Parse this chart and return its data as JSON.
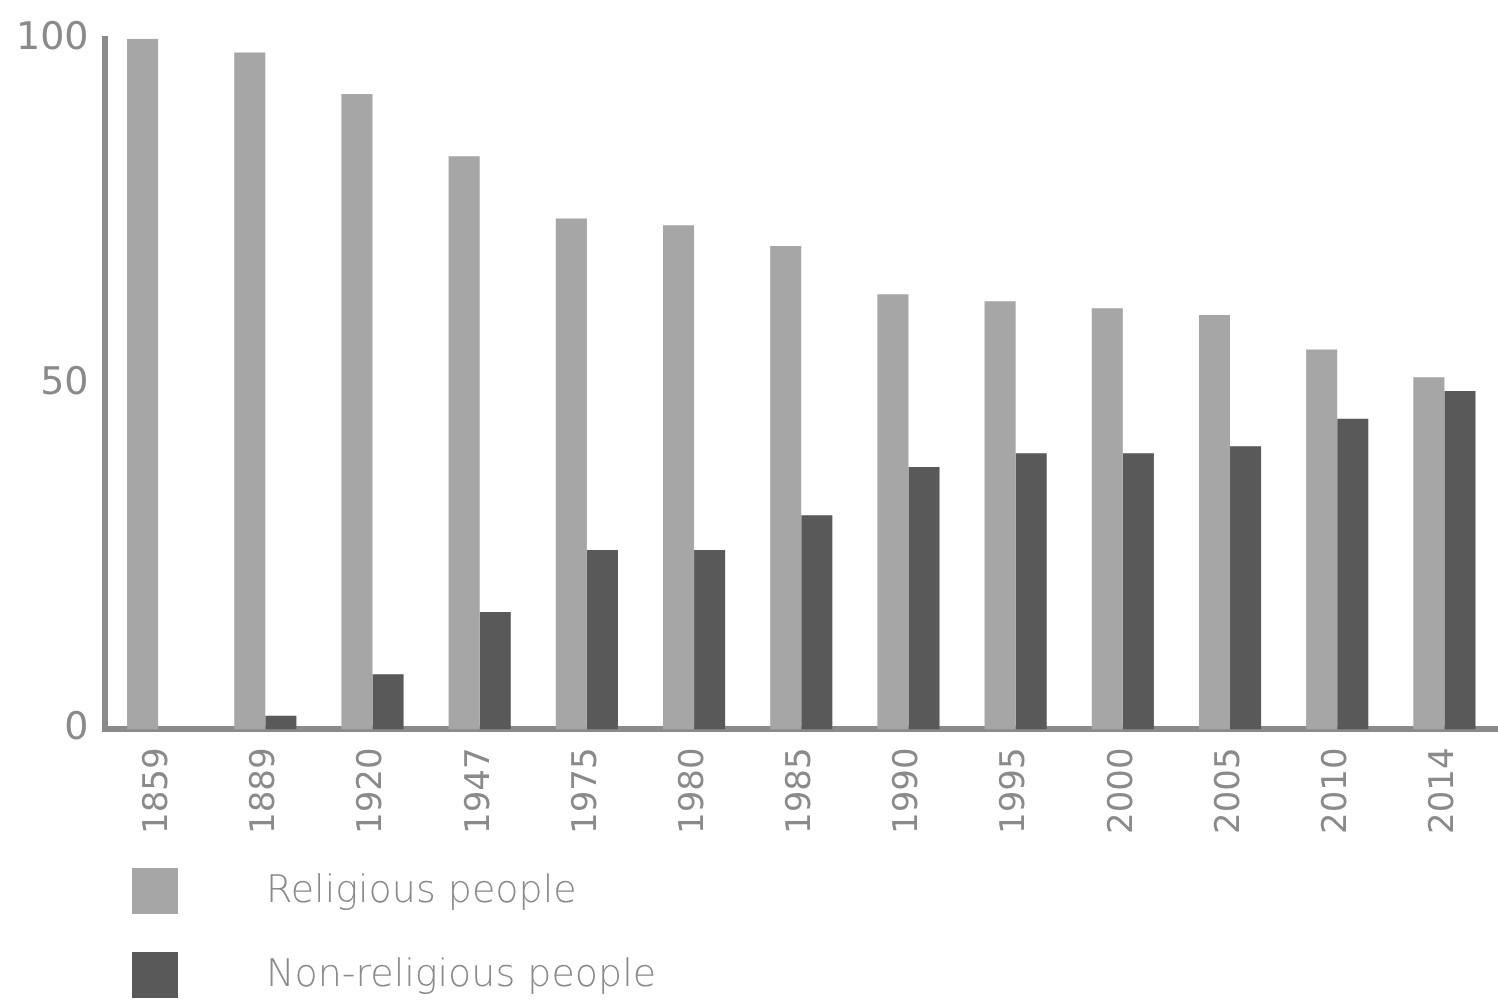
{
  "chart_data": {
    "type": "bar",
    "categories": [
      "1859",
      "1889",
      "1920",
      "1947",
      "1975",
      "1980",
      "1985",
      "1990",
      "1995",
      "2000",
      "2005",
      "2010",
      "2014"
    ],
    "series": [
      {
        "name": "Religious people",
        "color": "#a6a6a6",
        "values": [
          100,
          98,
          92,
          83,
          74,
          73,
          70,
          63,
          62,
          61,
          60,
          55,
          51
        ]
      },
      {
        "name": "Non-religious people",
        "color": "#595959",
        "values": [
          0,
          2,
          8,
          17,
          26,
          26,
          31,
          38,
          40,
          40,
          41,
          45,
          49
        ]
      }
    ],
    "ylim": [
      0,
      100
    ],
    "yticks": [
      0,
      50,
      100
    ],
    "grid": false,
    "legend": "bottom"
  }
}
